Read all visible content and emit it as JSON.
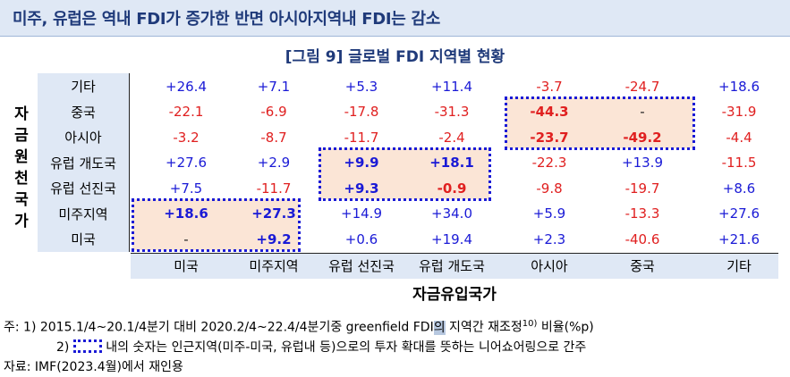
{
  "header": {
    "title": "미주, 유럽은 역내 FDI가 증가한 반면 아시아지역내 FDI는 감소"
  },
  "figure_title": "[그림 9] 글로벌 FDI 지역별 현황",
  "y_axis_title": [
    "자",
    "금",
    "원",
    "천",
    "국",
    "가"
  ],
  "x_axis_title": "자금유입국가",
  "rows": [
    {
      "label": "기타",
      "values": [
        "+26.4",
        "+7.1",
        "+5.3",
        "+11.4",
        "-3.7",
        "-24.7",
        "+18.6"
      ]
    },
    {
      "label": "중국",
      "values": [
        "-22.1",
        "-6.9",
        "-17.8",
        "-31.3",
        "-44.3",
        "-",
        "-31.9"
      ]
    },
    {
      "label": "아시아",
      "values": [
        "-3.2",
        "-8.7",
        "-11.7",
        "-2.4",
        "-23.7",
        "-49.2",
        "-4.4"
      ]
    },
    {
      "label": "유럽 개도국",
      "values": [
        "+27.6",
        "+2.9",
        "+9.9",
        "+18.1",
        "-22.3",
        "+13.9",
        "-11.5"
      ]
    },
    {
      "label": "유럽 선진국",
      "values": [
        "+7.5",
        "-11.7",
        "+9.3",
        "-0.9",
        "-9.8",
        "-19.7",
        "+8.6"
      ]
    },
    {
      "label": "미주지역",
      "values": [
        "+18.6",
        "+27.3",
        "+14.9",
        "+34.0",
        "+5.9",
        "-13.3",
        "+27.6"
      ]
    },
    {
      "label": "미국",
      "values": [
        "-",
        "+9.2",
        "+0.6",
        "+19.4",
        "+2.3",
        "-40.6",
        "+21.6"
      ]
    }
  ],
  "columns": [
    "미국",
    "미주지역",
    "유럽 선진국",
    "유럽 개도국",
    "아시아",
    "중국",
    "기타"
  ],
  "notes": {
    "line1_prefix": "주: 1) 2015.1/4~20.1/4분기 대비 2020.2/4~22.4/4분기중 greenfield FDI",
    "line1_highlight": "의",
    "line1_suffix": " 지역간 재조정",
    "line1_sup": "10)",
    "line1_end": " 비율(%p)",
    "line2_prefix": "2)",
    "line2_text": " 내의 숫자는 인근지역(미주-미국, 유럽내 등)으로의 투자 확대를 뜻하는 니어쇼어링으로 간주",
    "source": "자료: IMF(2023.4월)에서 재인용"
  }
}
